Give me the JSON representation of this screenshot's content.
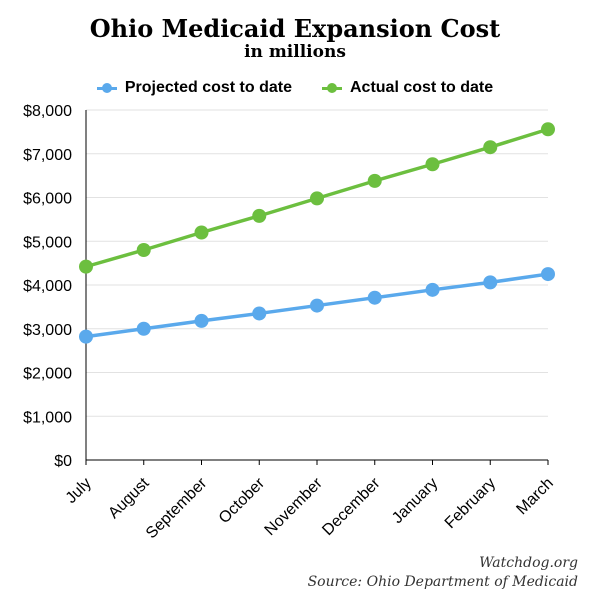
{
  "chart_data": {
    "type": "line",
    "title": "Ohio Medicaid Expansion Cost",
    "subtitle": "in millions",
    "categories": [
      "July",
      "August",
      "September",
      "October",
      "November",
      "December",
      "January",
      "February",
      "March"
    ],
    "series": [
      {
        "name": "Projected cost to date",
        "color": "#5aa9ec",
        "values": [
          2820,
          3000,
          3180,
          3350,
          3530,
          3710,
          3890,
          4060,
          4250
        ]
      },
      {
        "name": "Actual cost to date",
        "color": "#6cbf3f",
        "values": [
          4420,
          4800,
          5200,
          5580,
          5980,
          6380,
          6760,
          7150,
          7560
        ]
      }
    ],
    "ylim": [
      0,
      8000
    ],
    "yticks": [
      0,
      1000,
      2000,
      3000,
      4000,
      5000,
      6000,
      7000,
      8000
    ],
    "ytick_labels": [
      "$0",
      "$1,000",
      "$2,000",
      "$3,000",
      "$4,000",
      "$5,000",
      "$6,000",
      "$7,000",
      "$8,000"
    ],
    "grid": true,
    "legend_position": "top-center"
  },
  "source": {
    "line1": "Watchdog.org",
    "line2": "Source: Ohio Department of Medicaid"
  }
}
